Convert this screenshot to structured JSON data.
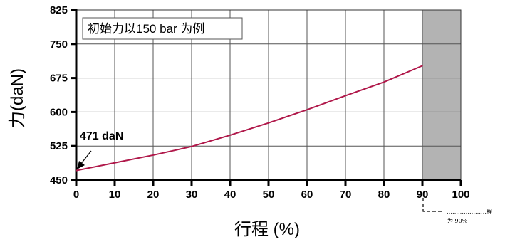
{
  "chart_data": {
    "type": "line",
    "title": "",
    "xlabel": "行程 (%)",
    "ylabel": "力(daN)",
    "xlim": [
      0,
      100
    ],
    "ylim": [
      450,
      825
    ],
    "x_ticks": [
      "0",
      "10",
      "20",
      "30",
      "40",
      "50",
      "60",
      "70",
      "80",
      "90",
      "100"
    ],
    "y_ticks": [
      "450",
      "525",
      "600",
      "675",
      "750",
      "825"
    ],
    "series": [
      {
        "color": "#b0184a",
        "x": [
          0,
          10,
          20,
          30,
          40,
          50,
          60,
          70,
          80,
          90
        ],
        "y": [
          471,
          488,
          505,
          524,
          549,
          576,
          605,
          636,
          666,
          702
        ]
      }
    ],
    "shaded_region": {
      "x_from": 90,
      "x_to": 100,
      "color": "#b3b3b3"
    },
    "annotations": {
      "box_text": "初始力以150 bar 为例",
      "start_label": "471 daN",
      "note_line1": "…………………程",
      "note_line2": "为 90%"
    },
    "grid": true,
    "grid_color": "#555555"
  }
}
